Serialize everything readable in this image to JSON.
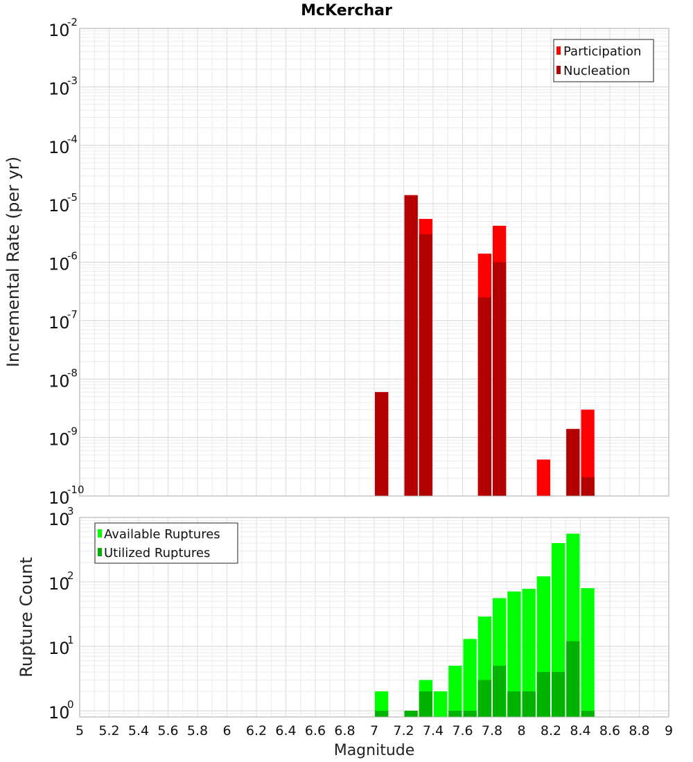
{
  "chart_data": [
    {
      "type": "bar",
      "title": "McKerchar",
      "ylabel": "Incremental Rate (per yr)",
      "xlabel": "",
      "x_range": [
        5,
        9
      ],
      "y_scale": "log",
      "y_range": [
        1e-10,
        0.01
      ],
      "grid": true,
      "legend_position": "top-right",
      "y_ticks": [
        {
          "mant": "10",
          "exp": "-2",
          "value": 0.01
        },
        {
          "mant": "10",
          "exp": "-3",
          "value": 0.001
        },
        {
          "mant": "10",
          "exp": "-4",
          "value": 0.0001
        },
        {
          "mant": "10",
          "exp": "-5",
          "value": 1e-05
        },
        {
          "mant": "10",
          "exp": "-6",
          "value": 1e-06
        },
        {
          "mant": "10",
          "exp": "-7",
          "value": 1e-07
        },
        {
          "mant": "10",
          "exp": "-8",
          "value": 1e-08
        },
        {
          "mant": "10",
          "exp": "-9",
          "value": 1e-09
        },
        {
          "mant": "10",
          "exp": "-10",
          "value": 1e-10
        }
      ],
      "bar_width": 0.1,
      "series": [
        {
          "name": "Participation",
          "color": "#ff0000",
          "x": [
            7.05,
            7.25,
            7.35,
            7.75,
            7.85,
            8.15,
            8.35,
            8.45
          ],
          "values": [
            6e-09,
            1.4e-05,
            5.5e-06,
            1.4e-06,
            4.2e-06,
            4.2e-10,
            1.4e-09,
            3e-09
          ]
        },
        {
          "name": "Nucleation",
          "color": "#b30000",
          "x": [
            7.05,
            7.25,
            7.35,
            7.75,
            7.85,
            8.35,
            8.45
          ],
          "values": [
            6e-09,
            1.4e-05,
            3e-06,
            2.5e-07,
            1e-06,
            1.4e-09,
            2.1e-10
          ]
        }
      ]
    },
    {
      "type": "bar",
      "title": "",
      "ylabel": "Rupture Count",
      "xlabel": "Magnitude",
      "x_range": [
        5,
        9
      ],
      "x_ticks": [
        "5",
        "5.2",
        "5.4",
        "5.6",
        "5.8",
        "6",
        "6.2",
        "6.4",
        "6.6",
        "6.8",
        "7",
        "7.2",
        "7.4",
        "7.6",
        "7.8",
        "8",
        "8.2",
        "8.4",
        "8.6",
        "8.8",
        "9"
      ],
      "y_scale": "log",
      "y_range": [
        0.8,
        1000
      ],
      "grid": true,
      "legend_position": "top-left",
      "y_ticks": [
        {
          "mant": "10",
          "exp": "3",
          "value": 1000
        },
        {
          "mant": "10",
          "exp": "2",
          "value": 100
        },
        {
          "mant": "10",
          "exp": "1",
          "value": 10
        },
        {
          "mant": "10",
          "exp": "0",
          "value": 1
        }
      ],
      "bar_width": 0.1,
      "series": [
        {
          "name": "Available Ruptures",
          "color": "#00ff00",
          "x": [
            7.05,
            7.35,
            7.45,
            7.55,
            7.65,
            7.75,
            7.85,
            7.95,
            8.05,
            8.15,
            8.25,
            8.35,
            8.45
          ],
          "values": [
            2,
            3,
            2,
            5,
            13,
            29,
            56,
            71,
            78,
            122,
            400,
            560,
            80
          ]
        },
        {
          "name": "Utilized Ruptures",
          "color": "#00b300",
          "x": [
            7.05,
            7.25,
            7.35,
            7.55,
            7.65,
            7.75,
            7.85,
            7.95,
            8.05,
            8.15,
            8.25,
            8.35,
            8.45
          ],
          "values": [
            1,
            1,
            2,
            1,
            1,
            3,
            5,
            2,
            2,
            4,
            4,
            12,
            1
          ]
        }
      ]
    }
  ]
}
